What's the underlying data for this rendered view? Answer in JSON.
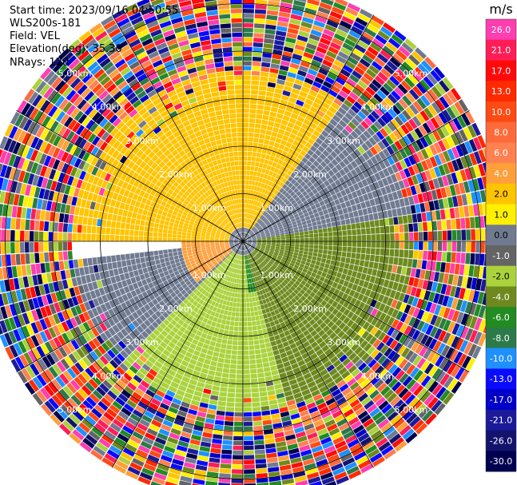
{
  "header": {
    "start_time": "Start time: 2023/09/16 04:50:55",
    "instrument": "WLS200s-181",
    "field": "Field: VEL",
    "elevation": "Elevation(deg): 35.30",
    "nrays": "NRays: 120"
  },
  "chart_data": {
    "type": "heatmap",
    "projection": "polar-ppi",
    "field": "VEL",
    "units": "m/s",
    "nrays": 120,
    "elevation_deg": 35.3,
    "range_rings_km": [
      1,
      2,
      3,
      4,
      5
    ],
    "ring_label_texts": [
      "1.00km",
      "2.00km",
      "3.00km",
      "4.00km",
      "5.00km"
    ],
    "radial_lines_deg": [
      0,
      30,
      60,
      90,
      120,
      150,
      180,
      210,
      240,
      270,
      300,
      330
    ],
    "max_range_km": 5.5,
    "colorbar": {
      "label": "m/s",
      "tick_labels": [
        "26.0",
        "21.0",
        "17.0",
        "13.0",
        "10.0",
        "8.0",
        "6.0",
        "4.0",
        "2.0",
        "1.0",
        "0.0",
        "-1.0",
        "-2.0",
        "-4.0",
        "-6.0",
        "-8.0",
        "-10.0",
        "-13.0",
        "-17.0",
        "-21.0",
        "-26.0",
        "-30.0"
      ],
      "colors": [
        "#ff3eb0",
        "#ff1d57",
        "#ff0a0a",
        "#ff2a00",
        "#ff4a14",
        "#ff6a3a",
        "#ff8050",
        "#ff9f3a",
        "#ffc400",
        "#ffef00",
        "#707a90",
        "#646464",
        "#aad23c",
        "#6e8a1e",
        "#228b22",
        "#2c7a4a",
        "#1e90ff",
        "#0a0aff",
        "#0000c8",
        "#1a1a9a",
        "#13136e",
        "#000050"
      ]
    },
    "velocity_regions": [
      {
        "range_km": [
          0.0,
          0.35
        ],
        "az_deg": [
          0,
          360
        ],
        "velocity_ms": 0.0
      },
      {
        "range_km": [
          0.35,
          3.6
        ],
        "az_deg": [
          270,
          360
        ],
        "velocity_ms": 2.5
      },
      {
        "range_km": [
          0.35,
          3.6
        ],
        "az_deg": [
          0,
          35
        ],
        "velocity_ms": 2.5
      },
      {
        "range_km": [
          0.35,
          1.3
        ],
        "az_deg": [
          228,
          275
        ],
        "velocity_ms": 4.5
      },
      {
        "range_km": [
          0.35,
          3.6
        ],
        "az_deg": [
          35,
          80
        ],
        "velocity_ms": 0.0
      },
      {
        "range_km": [
          0.35,
          3.6
        ],
        "az_deg": [
          80,
          165
        ],
        "velocity_ms": -2.5
      },
      {
        "range_km": [
          0.35,
          1.1
        ],
        "az_deg": [
          100,
          175
        ],
        "velocity_ms": -6.0
      },
      {
        "range_km": [
          0.35,
          3.6
        ],
        "az_deg": [
          165,
          225
        ],
        "velocity_ms": -2.0
      },
      {
        "range_km": [
          0.35,
          3.6
        ],
        "az_deg": [
          225,
          265
        ],
        "velocity_ms": 0.0
      },
      {
        "range_km": [
          3.6,
          5.5
        ],
        "az_deg": [
          0,
          360
        ],
        "velocity_ms": null,
        "note_noise": true
      }
    ]
  }
}
